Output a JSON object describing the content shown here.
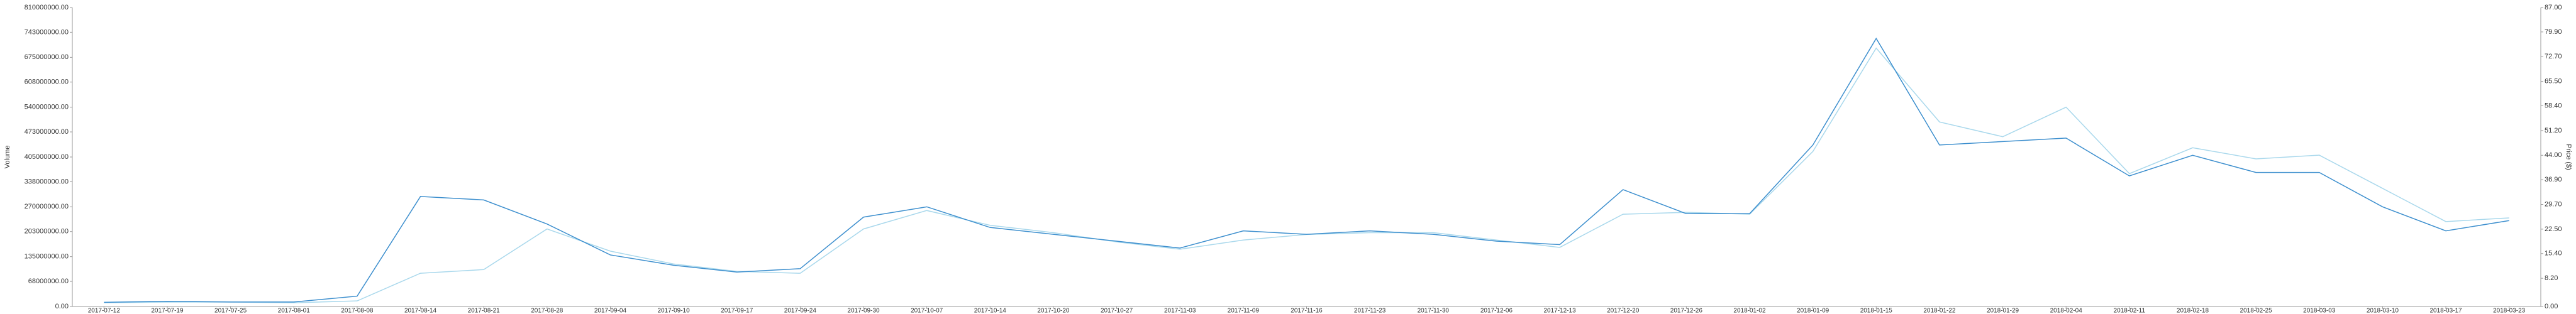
{
  "chart_data": {
    "type": "line",
    "y_label": "Volume",
    "y2_label": "Price ($)",
    "categories": [
      "2017-07-12",
      "2017-07-19",
      "2017-07-25",
      "2017-08-01",
      "2017-08-08",
      "2017-08-14",
      "2017-08-21",
      "2017-08-28",
      "2017-09-04",
      "2017-09-10",
      "2017-09-17",
      "2017-09-24",
      "2017-09-30",
      "2017-10-07",
      "2017-10-14",
      "2017-10-20",
      "2017-10-27",
      "2017-11-03",
      "2017-11-09",
      "2017-11-16",
      "2017-11-23",
      "2017-11-30",
      "2017-12-06",
      "2017-12-13",
      "2017-12-20",
      "2017-12-26",
      "2018-01-02",
      "2018-01-09",
      "2018-01-15",
      "2018-01-22",
      "2018-01-29",
      "2018-02-04",
      "2018-02-11",
      "2018-02-18",
      "2018-02-25",
      "2018-03-03",
      "2018-03-10",
      "2018-03-17",
      "2018-03-23"
    ],
    "series": [
      {
        "color": "#a9d8ec",
        "values": [
          10000000,
          12000000,
          12000000,
          10000000,
          15000000,
          90000000,
          100000000,
          210000000,
          150000000,
          115000000,
          95000000,
          90000000,
          210000000,
          260000000,
          220000000,
          200000000,
          175000000,
          155000000,
          180000000,
          195000000,
          200000000,
          200000000,
          180000000,
          160000000,
          250000000,
          255000000,
          250000000,
          420000000,
          700000000,
          500000000,
          460000000,
          540000000,
          360000000,
          430000000,
          400000000,
          410000000,
          320000000,
          230000000,
          240000000
        ]
      },
      {
        "color": "#3d8fce",
        "axis": "y2",
        "values": [
          1.2,
          1.5,
          1.3,
          1.3,
          3,
          32,
          31,
          24,
          15,
          12,
          10,
          11,
          26,
          29,
          23,
          21,
          19,
          17,
          22,
          21,
          22,
          21,
          19,
          18,
          34,
          27,
          27,
          47,
          78,
          47,
          48,
          49,
          38,
          44,
          39,
          39,
          29,
          22,
          25
        ]
      }
    ],
    "ylim": [
      0,
      810000000
    ],
    "yticks": [
      {
        "value": 0,
        "label": "0.00"
      },
      {
        "value": 68000000,
        "label": "68000000.00"
      },
      {
        "value": 135000000,
        "label": "135000000.00"
      },
      {
        "value": 203000000,
        "label": "203000000.00"
      },
      {
        "value": 270000000,
        "label": "270000000.00"
      },
      {
        "value": 338000000,
        "label": "338000000.00"
      },
      {
        "value": 405000000,
        "label": "405000000.00"
      },
      {
        "value": 473000000,
        "label": "473000000.00"
      },
      {
        "value": 540000000,
        "label": "540000000.00"
      },
      {
        "value": 608000000,
        "label": "608000000.00"
      },
      {
        "value": 675000000,
        "label": "675000000.00"
      },
      {
        "value": 743000000,
        "label": "743000000.00"
      },
      {
        "value": 810000000,
        "label": "810000000.00"
      }
    ],
    "y2lim": [
      0,
      87
    ],
    "y2ticks": [
      {
        "value": 0,
        "label": "0.00"
      },
      {
        "value": 8.2,
        "label": "8.20"
      },
      {
        "value": 15.4,
        "label": "15.40"
      },
      {
        "value": 22.5,
        "label": "22.50"
      },
      {
        "value": 29.7,
        "label": "29.70"
      },
      {
        "value": 36.9,
        "label": "36.90"
      },
      {
        "value": 44,
        "label": "44.00"
      },
      {
        "value": 51.2,
        "label": "51.20"
      },
      {
        "value": 58.4,
        "label": "58.40"
      },
      {
        "value": 65.5,
        "label": "65.50"
      },
      {
        "value": 72.7,
        "label": "72.70"
      },
      {
        "value": 79.9,
        "label": "79.90"
      },
      {
        "value": 87,
        "label": "87.00"
      }
    ]
  }
}
